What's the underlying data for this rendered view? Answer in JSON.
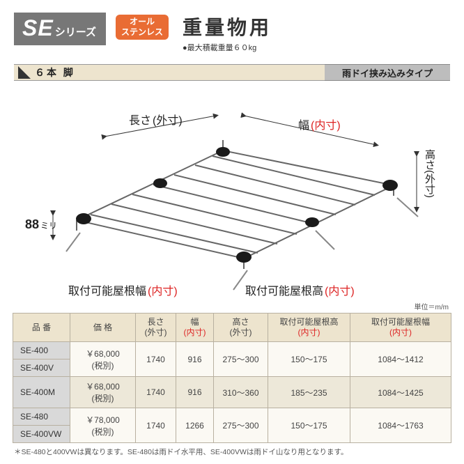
{
  "header": {
    "series_prefix": "SE",
    "series_suffix": "シリーズ",
    "badge_line1": "オール",
    "badge_line2": "ステンレス",
    "heavy_title": "重量物用",
    "heavy_sub": "●最大積載重量６０kg"
  },
  "bar": {
    "left_text": "６本 脚",
    "right_text": "雨ドイ挟み込みタイプ"
  },
  "diagram": {
    "label_length": "長さ",
    "label_length_paren": "(外寸)",
    "label_width": "幅",
    "label_width_paren": "(内寸)",
    "label_height_v": "高さ(外寸)",
    "label_88": "88",
    "label_88_unit": "ミリ",
    "label_roof_w": "取付可能屋根幅",
    "label_roof_w_paren": "(内寸)",
    "label_roof_h": "取付可能屋根高",
    "label_roof_h_paren": "(内寸)"
  },
  "unit_note": "単位＝m/m",
  "table": {
    "columns": [
      {
        "l1": "品 番",
        "l2": ""
      },
      {
        "l1": "価 格",
        "l2": ""
      },
      {
        "l1": "長さ",
        "l2": "(外寸)",
        "l2_red": false
      },
      {
        "l1": "幅",
        "l2": "(内寸)",
        "l2_red": true
      },
      {
        "l1": "高さ",
        "l2": "(外寸)",
        "l2_red": false
      },
      {
        "l1": "取付可能屋根高",
        "l2": "(内寸)",
        "l2_red": true
      },
      {
        "l1": "取付可能屋根幅",
        "l2": "(内寸)",
        "l2_red": true
      }
    ],
    "col_widths": [
      "82px",
      "94px",
      "58px",
      "54px",
      "78px",
      "118px",
      "auto"
    ],
    "groups": [
      {
        "class": "group-a",
        "models": [
          "SE-400",
          "SE-400V"
        ],
        "price": "￥68,000\n(税別)",
        "vals": [
          "1740",
          "916",
          "275～300",
          "150～175",
          "1084～1412"
        ]
      },
      {
        "class": "group-b",
        "models": [
          "SE-400M"
        ],
        "price": "￥68,000\n(税別)",
        "vals": [
          "1740",
          "916",
          "310～360",
          "185～235",
          "1084～1425"
        ]
      },
      {
        "class": "group-a",
        "models": [
          "SE-480",
          "SE-400VW"
        ],
        "price": "￥78,000\n(税別)",
        "vals": [
          "1740",
          "1266",
          "275～300",
          "150～175",
          "1084～1763"
        ]
      }
    ]
  },
  "footnote": "＊SE-480と400VWは異なります。SE-480は雨ドイ水平用、SE-400VWは雨ドイ山なり用となります。",
  "colors": {
    "beige": "#ede4ce",
    "gray": "#bdbdbd",
    "orange": "#e96c34",
    "red": "#d22",
    "header_gray": "#777777"
  }
}
